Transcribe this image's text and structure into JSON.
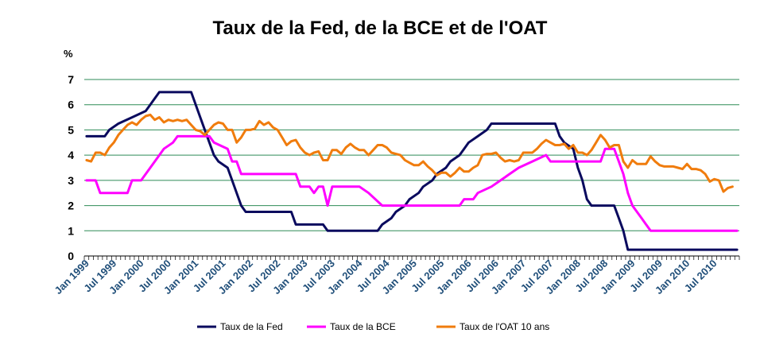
{
  "chart_data": {
    "type": "line",
    "title": "Taux de la Fed, de la BCE et de l'OAT",
    "ylabel": "%",
    "xlabel": "",
    "ylim": [
      0,
      7
    ],
    "yticks": [
      "0",
      "1",
      "2",
      "3",
      "4",
      "5",
      "6",
      "7"
    ],
    "grid": true,
    "legend_position": "bottom",
    "x_start": "Jan 1999",
    "x_end": "Dec 2010",
    "xtick_labels": [
      "Jan 1999",
      "Jul 1999",
      "Jan 2000",
      "Jul 2000",
      "Jan 2001",
      "Jul 2001",
      "Jan 2002",
      "Jul 2002",
      "Jan 2003",
      "Jul 2003",
      "Jan 2004",
      "Jul 2004",
      "Jan 2005",
      "Jul 2005",
      "Jan 2006",
      "Jul 2006",
      "Jan 2007",
      "Jul 2007",
      "Jan 2008",
      "Jul 2008",
      "Jan 2009",
      "Jul 2009",
      "Jan 2010",
      "Jul 2010"
    ],
    "series": [
      {
        "name": "Taux de la Fed",
        "color": "#0a0a5e",
        "points": [
          [
            "Jan 1999",
            4.75
          ],
          [
            "May 1999",
            4.75
          ],
          [
            "Jun 1999",
            5.0
          ],
          [
            "Aug 1999",
            5.25
          ],
          [
            "Nov 1999",
            5.5
          ],
          [
            "Feb 2000",
            5.75
          ],
          [
            "Mar 2000",
            6.0
          ],
          [
            "May 2000",
            6.5
          ],
          [
            "Dec 2000",
            6.5
          ],
          [
            "Jan 2001",
            6.0
          ],
          [
            "Feb 2001",
            5.5
          ],
          [
            "Mar 2001",
            5.0
          ],
          [
            "Apr 2001",
            4.5
          ],
          [
            "May 2001",
            4.0
          ],
          [
            "Jun 2001",
            3.75
          ],
          [
            "Aug 2001",
            3.5
          ],
          [
            "Sep 2001",
            3.0
          ],
          [
            "Oct 2001",
            2.5
          ],
          [
            "Nov 2001",
            2.0
          ],
          [
            "Dec 2001",
            1.75
          ],
          [
            "Oct 2002",
            1.75
          ],
          [
            "Nov 2002",
            1.25
          ],
          [
            "May 2003",
            1.25
          ],
          [
            "Jun 2003",
            1.0
          ],
          [
            "May 2004",
            1.0
          ],
          [
            "Jun 2004",
            1.25
          ],
          [
            "Aug 2004",
            1.5
          ],
          [
            "Sep 2004",
            1.75
          ],
          [
            "Nov 2004",
            2.0
          ],
          [
            "Dec 2004",
            2.25
          ],
          [
            "Feb 2005",
            2.5
          ],
          [
            "Mar 2005",
            2.75
          ],
          [
            "May 2005",
            3.0
          ],
          [
            "Jun 2005",
            3.25
          ],
          [
            "Aug 2005",
            3.5
          ],
          [
            "Sep 2005",
            3.75
          ],
          [
            "Nov 2005",
            4.0
          ],
          [
            "Dec 2005",
            4.25
          ],
          [
            "Jan 2006",
            4.5
          ],
          [
            "Mar 2006",
            4.75
          ],
          [
            "May 2006",
            5.0
          ],
          [
            "Jun 2006",
            5.25
          ],
          [
            "Aug 2007",
            5.25
          ],
          [
            "Sep 2007",
            4.75
          ],
          [
            "Oct 2007",
            4.5
          ],
          [
            "Dec 2007",
            4.25
          ],
          [
            "Jan 2008",
            3.5
          ],
          [
            "Feb 2008",
            3.0
          ],
          [
            "Mar 2008",
            2.25
          ],
          [
            "Apr 2008",
            2.0
          ],
          [
            "Sep 2008",
            2.0
          ],
          [
            "Oct 2008",
            1.5
          ],
          [
            "Nov 2008",
            1.0
          ],
          [
            "Dec 2008",
            0.25
          ],
          [
            "Dec 2010",
            0.25
          ]
        ]
      },
      {
        "name": "Taux de la BCE",
        "color": "#ff00ff",
        "points": [
          [
            "Jan 1999",
            3.0
          ],
          [
            "Mar 1999",
            3.0
          ],
          [
            "Apr 1999",
            2.5
          ],
          [
            "Oct 1999",
            2.5
          ],
          [
            "Nov 1999",
            3.0
          ],
          [
            "Jan 2000",
            3.0
          ],
          [
            "Feb 2000",
            3.25
          ],
          [
            "Mar 2000",
            3.5
          ],
          [
            "Apr 2000",
            3.75
          ],
          [
            "Jun 2000",
            4.25
          ],
          [
            "Aug 2000",
            4.5
          ],
          [
            "Sep 2000",
            4.75
          ],
          [
            "Apr 2001",
            4.75
          ],
          [
            "May 2001",
            4.5
          ],
          [
            "Aug 2001",
            4.25
          ],
          [
            "Sep 2001",
            3.75
          ],
          [
            "Oct 2001",
            3.75
          ],
          [
            "Nov 2001",
            3.25
          ],
          [
            "Nov 2002",
            3.25
          ],
          [
            "Dec 2002",
            2.75
          ],
          [
            "Feb 2003",
            2.75
          ],
          [
            "Mar 2003",
            2.5
          ],
          [
            "Apr 2003",
            2.75
          ],
          [
            "May 2003",
            2.75
          ],
          [
            "Jun 2003",
            2.0
          ],
          [
            "Jul 2003",
            2.75
          ],
          [
            "Jan 2004",
            2.75
          ],
          [
            "Mar 2004",
            2.5
          ],
          [
            "Jun 2004",
            2.0
          ],
          [
            "Nov 2005",
            2.0
          ],
          [
            "Dec 2005",
            2.25
          ],
          [
            "Feb 2006",
            2.25
          ],
          [
            "Mar 2006",
            2.5
          ],
          [
            "Jun 2006",
            2.75
          ],
          [
            "Aug 2006",
            3.0
          ],
          [
            "Oct 2006",
            3.25
          ],
          [
            "Dec 2006",
            3.5
          ],
          [
            "Mar 2007",
            3.75
          ],
          [
            "Jun 2007",
            4.0
          ],
          [
            "Jul 2007",
            3.75
          ],
          [
            "Jun 2008",
            3.75
          ],
          [
            "Jul 2008",
            4.25
          ],
          [
            "Sep 2008",
            4.25
          ],
          [
            "Oct 2008",
            3.75
          ],
          [
            "Nov 2008",
            3.25
          ],
          [
            "Dec 2008",
            2.5
          ],
          [
            "Jan 2009",
            2.0
          ],
          [
            "Mar 2009",
            1.5
          ],
          [
            "Apr 2009",
            1.25
          ],
          [
            "May 2009",
            1.0
          ],
          [
            "Dec 2010",
            1.0
          ]
        ]
      },
      {
        "name": "Taux de l'OAT 10 ans",
        "color": "#f07c0d",
        "points": [
          [
            "Jan 1999",
            3.8
          ],
          [
            "Feb 1999",
            3.75
          ],
          [
            "Mar 1999",
            4.1
          ],
          [
            "Apr 1999",
            4.1
          ],
          [
            "May 1999",
            4.0
          ],
          [
            "Jun 1999",
            4.3
          ],
          [
            "Jul 1999",
            4.5
          ],
          [
            "Aug 1999",
            4.8
          ],
          [
            "Sep 1999",
            5.0
          ],
          [
            "Oct 1999",
            5.2
          ],
          [
            "Nov 1999",
            5.3
          ],
          [
            "Dec 1999",
            5.2
          ],
          [
            "Jan 2000",
            5.4
          ],
          [
            "Feb 2000",
            5.55
          ],
          [
            "Mar 2000",
            5.6
          ],
          [
            "Apr 2000",
            5.4
          ],
          [
            "May 2000",
            5.5
          ],
          [
            "Jun 2000",
            5.3
          ],
          [
            "Jul 2000",
            5.4
          ],
          [
            "Aug 2000",
            5.35
          ],
          [
            "Sep 2000",
            5.4
          ],
          [
            "Oct 2000",
            5.35
          ],
          [
            "Nov 2000",
            5.4
          ],
          [
            "Dec 2000",
            5.2
          ],
          [
            "Jan 2001",
            5.0
          ],
          [
            "Feb 2001",
            4.95
          ],
          [
            "Mar 2001",
            4.8
          ],
          [
            "Apr 2001",
            5.0
          ],
          [
            "May 2001",
            5.2
          ],
          [
            "Jun 2001",
            5.3
          ],
          [
            "Jul 2001",
            5.25
          ],
          [
            "Aug 2001",
            5.0
          ],
          [
            "Sep 2001",
            5.0
          ],
          [
            "Oct 2001",
            4.5
          ],
          [
            "Nov 2001",
            4.7
          ],
          [
            "Dec 2001",
            5.0
          ],
          [
            "Jan 2002",
            5.0
          ],
          [
            "Feb 2002",
            5.05
          ],
          [
            "Mar 2002",
            5.35
          ],
          [
            "Apr 2002",
            5.2
          ],
          [
            "May 2002",
            5.3
          ],
          [
            "Jun 2002",
            5.1
          ],
          [
            "Jul 2002",
            5.0
          ],
          [
            "Aug 2002",
            4.7
          ],
          [
            "Sep 2002",
            4.4
          ],
          [
            "Oct 2002",
            4.55
          ],
          [
            "Nov 2002",
            4.6
          ],
          [
            "Dec 2002",
            4.3
          ],
          [
            "Jan 2003",
            4.1
          ],
          [
            "Feb 2003",
            4.0
          ],
          [
            "Mar 2003",
            4.1
          ],
          [
            "Apr 2003",
            4.15
          ],
          [
            "May 2003",
            3.8
          ],
          [
            "Jun 2003",
            3.8
          ],
          [
            "Jul 2003",
            4.2
          ],
          [
            "Aug 2003",
            4.2
          ],
          [
            "Sep 2003",
            4.05
          ],
          [
            "Oct 2003",
            4.3
          ],
          [
            "Nov 2003",
            4.45
          ],
          [
            "Dec 2003",
            4.3
          ],
          [
            "Jan 2004",
            4.2
          ],
          [
            "Feb 2004",
            4.2
          ],
          [
            "Mar 2004",
            4.0
          ],
          [
            "Apr 2004",
            4.2
          ],
          [
            "May 2004",
            4.4
          ],
          [
            "Jun 2004",
            4.4
          ],
          [
            "Jul 2004",
            4.3
          ],
          [
            "Aug 2004",
            4.1
          ],
          [
            "Sep 2004",
            4.05
          ],
          [
            "Oct 2004",
            4.0
          ],
          [
            "Nov 2004",
            3.8
          ],
          [
            "Dec 2004",
            3.7
          ],
          [
            "Jan 2005",
            3.6
          ],
          [
            "Feb 2005",
            3.6
          ],
          [
            "Mar 2005",
            3.75
          ],
          [
            "Apr 2005",
            3.55
          ],
          [
            "May 2005",
            3.4
          ],
          [
            "Jun 2005",
            3.2
          ],
          [
            "Jul 2005",
            3.3
          ],
          [
            "Aug 2005",
            3.3
          ],
          [
            "Sep 2005",
            3.15
          ],
          [
            "Oct 2005",
            3.3
          ],
          [
            "Nov 2005",
            3.5
          ],
          [
            "Dec 2005",
            3.35
          ],
          [
            "Jan 2006",
            3.35
          ],
          [
            "Feb 2006",
            3.5
          ],
          [
            "Mar 2006",
            3.6
          ],
          [
            "Apr 2006",
            4.0
          ],
          [
            "May 2006",
            4.05
          ],
          [
            "Jun 2006",
            4.05
          ],
          [
            "Jul 2006",
            4.1
          ],
          [
            "Aug 2006",
            3.9
          ],
          [
            "Sep 2006",
            3.75
          ],
          [
            "Oct 2006",
            3.8
          ],
          [
            "Nov 2006",
            3.75
          ],
          [
            "Dec 2006",
            3.8
          ],
          [
            "Jan 2007",
            4.1
          ],
          [
            "Feb 2007",
            4.1
          ],
          [
            "Mar 2007",
            4.1
          ],
          [
            "Apr 2007",
            4.25
          ],
          [
            "May 2007",
            4.45
          ],
          [
            "Jun 2007",
            4.6
          ],
          [
            "Jul 2007",
            4.5
          ],
          [
            "Aug 2007",
            4.4
          ],
          [
            "Sep 2007",
            4.4
          ],
          [
            "Oct 2007",
            4.45
          ],
          [
            "Nov 2007",
            4.25
          ],
          [
            "Dec 2007",
            4.4
          ],
          [
            "Jan 2008",
            4.1
          ],
          [
            "Feb 2008",
            4.1
          ],
          [
            "Mar 2008",
            4.0
          ],
          [
            "Apr 2008",
            4.2
          ],
          [
            "May 2008",
            4.5
          ],
          [
            "Jun 2008",
            4.8
          ],
          [
            "Jul 2008",
            4.6
          ],
          [
            "Aug 2008",
            4.3
          ],
          [
            "Sep 2008",
            4.4
          ],
          [
            "Oct 2008",
            4.4
          ],
          [
            "Nov 2008",
            3.75
          ],
          [
            "Dec 2008",
            3.5
          ],
          [
            "Jan 2009",
            3.8
          ],
          [
            "Feb 2009",
            3.65
          ],
          [
            "Mar 2009",
            3.65
          ],
          [
            "Apr 2009",
            3.65
          ],
          [
            "May 2009",
            3.95
          ],
          [
            "Jun 2009",
            3.75
          ],
          [
            "Jul 2009",
            3.6
          ],
          [
            "Aug 2009",
            3.55
          ],
          [
            "Sep 2009",
            3.55
          ],
          [
            "Oct 2009",
            3.55
          ],
          [
            "Nov 2009",
            3.5
          ],
          [
            "Dec 2009",
            3.45
          ],
          [
            "Jan 2010",
            3.65
          ],
          [
            "Feb 2010",
            3.45
          ],
          [
            "Mar 2010",
            3.45
          ],
          [
            "Apr 2010",
            3.4
          ],
          [
            "May 2010",
            3.25
          ],
          [
            "Jun 2010",
            2.95
          ],
          [
            "Jul 2010",
            3.05
          ],
          [
            "Aug 2010",
            3.0
          ],
          [
            "Sep 2010",
            2.55
          ],
          [
            "Oct 2010",
            2.7
          ],
          [
            "Nov 2010",
            2.75
          ]
        ]
      }
    ]
  }
}
